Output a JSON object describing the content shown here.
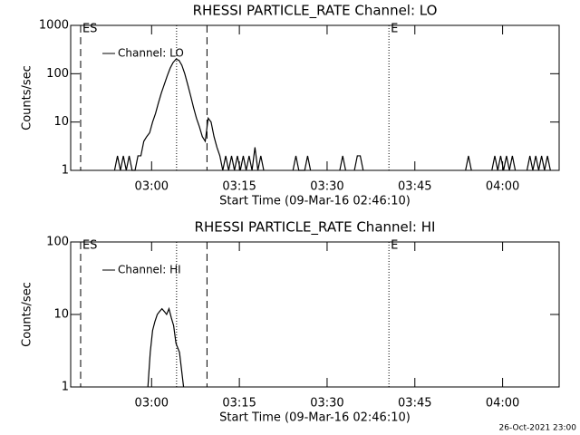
{
  "chart_data": [
    {
      "type": "line",
      "title": "RHESSI PARTICLE_RATE Channel: LO",
      "xlabel": "Start Time (09-Mar-16 02:46:10)",
      "ylabel": "Counts/sec",
      "x": [
        7.5,
        8,
        8.5,
        9,
        9.5,
        10,
        10.5,
        11,
        11.5,
        12,
        12.5,
        13,
        13.5,
        14,
        14.5,
        15,
        15.5,
        16,
        16.5,
        17,
        17.5,
        18,
        18.5,
        19,
        19.5,
        20,
        20.5,
        21,
        21.5,
        22,
        22.5,
        23,
        23.5,
        24,
        24.5,
        25,
        25.5,
        26,
        26.5,
        27,
        27.5,
        28,
        28.5,
        29,
        29.5,
        30,
        30.5,
        31,
        31.5,
        32,
        32.5,
        33,
        33.5,
        38,
        38.5,
        39,
        39.5,
        40,
        40.5,
        41,
        41.5,
        46,
        46.5,
        47,
        47.5,
        48.5,
        49,
        49.5,
        50,
        50.5,
        67.5,
        68,
        68.5,
        69,
        72,
        72.5,
        73,
        73.5,
        74,
        74.5,
        75,
        75.5,
        76,
        76.5,
        78,
        78.5,
        79,
        79.5,
        80,
        80.5,
        81,
        81.5,
        82
      ],
      "series": [
        {
          "name": "Channel: LO",
          "color": "#000000",
          "values": [
            1,
            2,
            1,
            2,
            1,
            2,
            1,
            1,
            2,
            2,
            4,
            5,
            6,
            10,
            15,
            25,
            40,
            60,
            90,
            130,
            170,
            200,
            190,
            150,
            100,
            60,
            35,
            20,
            12,
            8,
            5,
            4,
            12,
            10,
            5,
            3,
            2,
            1,
            2,
            1,
            2,
            1,
            2,
            1,
            2,
            1,
            2,
            1,
            3,
            1,
            2,
            1,
            null,
            1,
            2,
            1,
            1,
            1,
            2,
            1,
            null,
            1,
            2,
            1,
            null,
            1,
            2,
            2,
            1,
            null,
            1,
            2,
            1,
            null,
            1,
            2,
            1,
            2,
            1,
            2,
            1,
            2,
            1,
            null,
            1,
            2,
            1,
            2,
            1,
            2,
            1,
            2,
            1
          ]
        }
      ],
      "xlim": [
        0,
        83.5
      ],
      "ylim": [
        1,
        1000
      ],
      "log_y": true,
      "xticks": [
        {
          "value": 13.833,
          "label": "03:00"
        },
        {
          "value": 28.833,
          "label": "03:15"
        },
        {
          "value": 43.833,
          "label": "03:30"
        },
        {
          "value": 58.833,
          "label": "03:45"
        },
        {
          "value": 73.833,
          "label": "04:00"
        }
      ],
      "yticks": [
        1,
        10,
        100,
        1000
      ],
      "legend": "upper left",
      "markers": [
        {
          "x": 1.7,
          "style": "dashed",
          "label": "ES"
        },
        {
          "x": 18.1,
          "style": "dotted"
        },
        {
          "x": 23.3,
          "style": "dashed"
        },
        {
          "x": 54.4,
          "style": "dotted",
          "label": "E"
        }
      ]
    },
    {
      "type": "line",
      "title": "RHESSI PARTICLE_RATE Channel: HI",
      "xlabel": "Start Time (09-Mar-16 02:46:10)",
      "ylabel": "Counts/sec",
      "x": [
        13.2,
        13.6,
        14.0,
        14.4,
        14.8,
        15.2,
        15.6,
        16.0,
        16.4,
        16.8,
        17.2,
        17.6,
        18.0,
        18.6,
        19.3
      ],
      "series": [
        {
          "name": "Channel: HI",
          "color": "#000000",
          "values": [
            1,
            3,
            6,
            8,
            10,
            11,
            12,
            11,
            10,
            12,
            9,
            7,
            4,
            3,
            1
          ]
        }
      ],
      "xlim": [
        0,
        83.5
      ],
      "ylim": [
        1,
        100
      ],
      "log_y": true,
      "xticks": [
        {
          "value": 13.833,
          "label": "03:00"
        },
        {
          "value": 28.833,
          "label": "03:15"
        },
        {
          "value": 43.833,
          "label": "03:30"
        },
        {
          "value": 58.833,
          "label": "03:45"
        },
        {
          "value": 73.833,
          "label": "04:00"
        }
      ],
      "yticks": [
        1,
        10,
        100
      ],
      "legend": "upper left",
      "markers": [
        {
          "x": 1.7,
          "style": "dashed",
          "label": "ES"
        },
        {
          "x": 18.1,
          "style": "dotted"
        },
        {
          "x": 23.3,
          "style": "dashed"
        },
        {
          "x": 54.4,
          "style": "dotted",
          "label": "E"
        }
      ]
    }
  ],
  "footer": "26-Oct-2021 23:00"
}
